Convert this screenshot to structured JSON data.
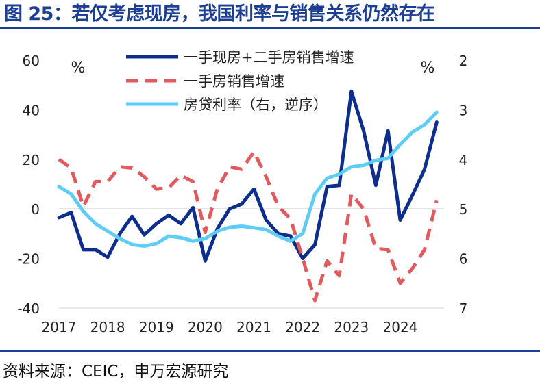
{
  "title": "图 25：若仅考虑现房，我国利率与销售关系仍然存在",
  "source": "资料来源：CEIC，申万宏源研究",
  "colors": {
    "series1": "#0d2e8c",
    "series2": "#e05a5e",
    "series3": "#5ecdf5",
    "title": "#1c3f94",
    "zero_line": "#c8c8c8"
  },
  "chart_data": {
    "type": "line",
    "x_labels": [
      "2017",
      "2018",
      "2019",
      "2020",
      "2021",
      "2022",
      "2023",
      "2024"
    ],
    "x_range": [
      2017.0,
      2024.9
    ],
    "left_axis": {
      "unit": "%",
      "range": [
        -40,
        60
      ],
      "ticks": [
        -40,
        -20,
        0,
        20,
        40,
        60
      ],
      "tick_labels": [
        "-40",
        "-20",
        "0",
        "20",
        "40",
        "60"
      ]
    },
    "right_axis": {
      "unit": "%",
      "range": [
        7,
        2
      ],
      "inverted": true,
      "ticks": [
        2,
        3,
        4,
        5,
        6,
        7
      ],
      "tick_labels": [
        "2",
        "3",
        "4",
        "5",
        "6",
        "7"
      ]
    },
    "legend_position": "top-center",
    "series": [
      {
        "name": "一手现房+二手房销售增速",
        "axis": "left",
        "style": "solid",
        "points": [
          [
            2017.0,
            -3.5
          ],
          [
            2017.25,
            -1.5
          ],
          [
            2017.5,
            -16.5
          ],
          [
            2017.75,
            -16.5
          ],
          [
            2018.0,
            -19.5
          ],
          [
            2018.25,
            -10.0
          ],
          [
            2018.5,
            -3.0
          ],
          [
            2018.75,
            -10.5
          ],
          [
            2019.0,
            -6.0
          ],
          [
            2019.25,
            -2.5
          ],
          [
            2019.5,
            -6.0
          ],
          [
            2019.75,
            0.5
          ],
          [
            2020.0,
            -21.0
          ],
          [
            2020.25,
            -8.0
          ],
          [
            2020.5,
            0.0
          ],
          [
            2020.75,
            2.0
          ],
          [
            2021.0,
            8.0
          ],
          [
            2021.25,
            -4.5
          ],
          [
            2021.5,
            -10.0
          ],
          [
            2021.75,
            -11.0
          ],
          [
            2022.0,
            -20.0
          ],
          [
            2022.25,
            -14.5
          ],
          [
            2022.5,
            9.0
          ],
          [
            2022.75,
            9.5
          ],
          [
            2023.0,
            47.5
          ],
          [
            2023.25,
            31.5
          ],
          [
            2023.5,
            9.5
          ],
          [
            2023.75,
            31.5
          ],
          [
            2024.0,
            -4.5
          ],
          [
            2024.25,
            5.5
          ],
          [
            2024.5,
            16.0
          ],
          [
            2024.75,
            35.0
          ]
        ]
      },
      {
        "name": "一手房销售增速",
        "axis": "left",
        "style": "dashed",
        "points": [
          [
            2017.0,
            20.0
          ],
          [
            2017.25,
            16.5
          ],
          [
            2017.5,
            1.0
          ],
          [
            2017.75,
            11.0
          ],
          [
            2018.0,
            11.0
          ],
          [
            2018.25,
            17.0
          ],
          [
            2018.5,
            16.5
          ],
          [
            2018.75,
            13.0
          ],
          [
            2019.0,
            8.0
          ],
          [
            2019.25,
            8.5
          ],
          [
            2019.5,
            13.5
          ],
          [
            2019.75,
            11.0
          ],
          [
            2020.0,
            -9.5
          ],
          [
            2020.25,
            8.0
          ],
          [
            2020.5,
            17.0
          ],
          [
            2020.75,
            16.0
          ],
          [
            2021.0,
            23.0
          ],
          [
            2021.25,
            13.0
          ],
          [
            2021.5,
            1.0
          ],
          [
            2021.75,
            -4.0
          ],
          [
            2022.0,
            -20.0
          ],
          [
            2022.25,
            -37.0
          ],
          [
            2022.5,
            -21.0
          ],
          [
            2022.75,
            -27.0
          ],
          [
            2023.0,
            6.0
          ],
          [
            2023.25,
            0.0
          ],
          [
            2023.5,
            -16.0
          ],
          [
            2023.75,
            -16.5
          ],
          [
            2024.0,
            -30.0
          ],
          [
            2024.25,
            -24.0
          ],
          [
            2024.5,
            -16.5
          ],
          [
            2024.75,
            3.5
          ]
        ]
      },
      {
        "name": "房贷利率（右，逆序）",
        "axis": "right",
        "style": "solid",
        "points": [
          [
            2017.0,
            4.55
          ],
          [
            2017.25,
            4.7
          ],
          [
            2017.5,
            5.05
          ],
          [
            2017.75,
            5.3
          ],
          [
            2018.0,
            5.45
          ],
          [
            2018.25,
            5.6
          ],
          [
            2018.5,
            5.72
          ],
          [
            2018.75,
            5.75
          ],
          [
            2019.0,
            5.7
          ],
          [
            2019.25,
            5.55
          ],
          [
            2019.5,
            5.58
          ],
          [
            2019.75,
            5.65
          ],
          [
            2020.0,
            5.6
          ],
          [
            2020.25,
            5.45
          ],
          [
            2020.5,
            5.37
          ],
          [
            2020.75,
            5.35
          ],
          [
            2021.0,
            5.38
          ],
          [
            2021.25,
            5.42
          ],
          [
            2021.5,
            5.55
          ],
          [
            2021.75,
            5.65
          ],
          [
            2022.0,
            5.5
          ],
          [
            2022.25,
            4.7
          ],
          [
            2022.5,
            4.38
          ],
          [
            2022.75,
            4.3
          ],
          [
            2023.0,
            4.15
          ],
          [
            2023.25,
            4.12
          ],
          [
            2023.5,
            4.02
          ],
          [
            2023.75,
            3.98
          ],
          [
            2024.0,
            3.7
          ],
          [
            2024.25,
            3.45
          ],
          [
            2024.5,
            3.3
          ],
          [
            2024.75,
            3.05
          ]
        ]
      }
    ]
  }
}
